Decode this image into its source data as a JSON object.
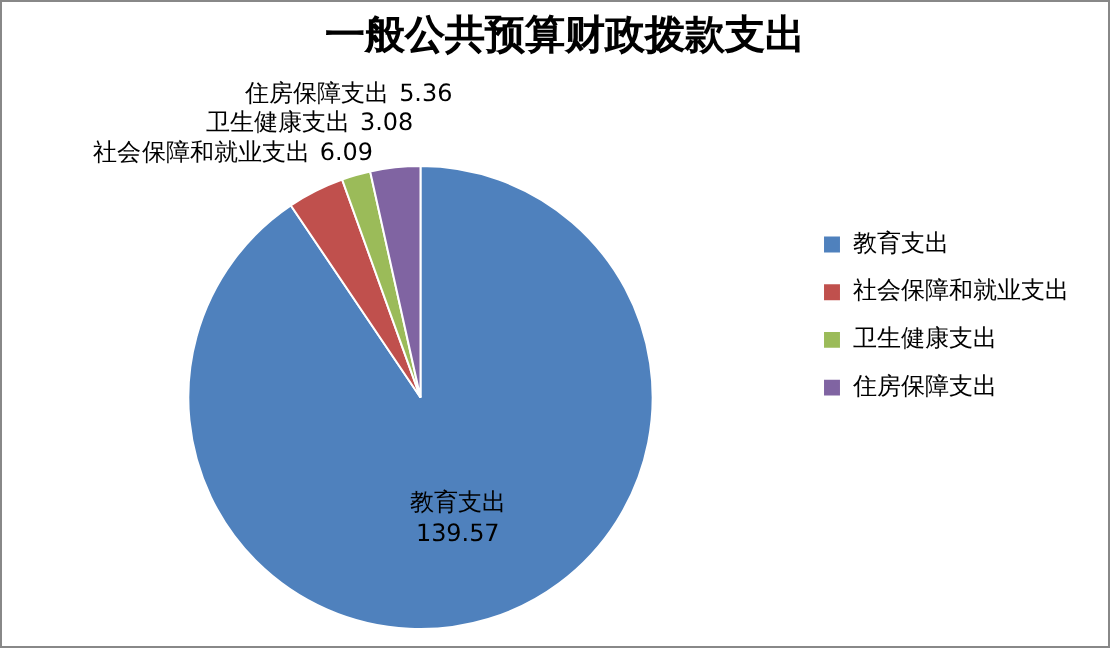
{
  "chart_data": {
    "type": "pie",
    "title": "一般公共预算财政拨款支出",
    "categories": [
      "教育支出",
      "社会保障和就业支出",
      "卫生健康支出",
      "住房保障支出"
    ],
    "values": [
      139.57,
      6.09,
      3.08,
      5.36
    ],
    "colors": [
      "#4f81bd",
      "#c0504d",
      "#9bbb59",
      "#8064a2"
    ],
    "legend": "right",
    "data_labels": true
  }
}
